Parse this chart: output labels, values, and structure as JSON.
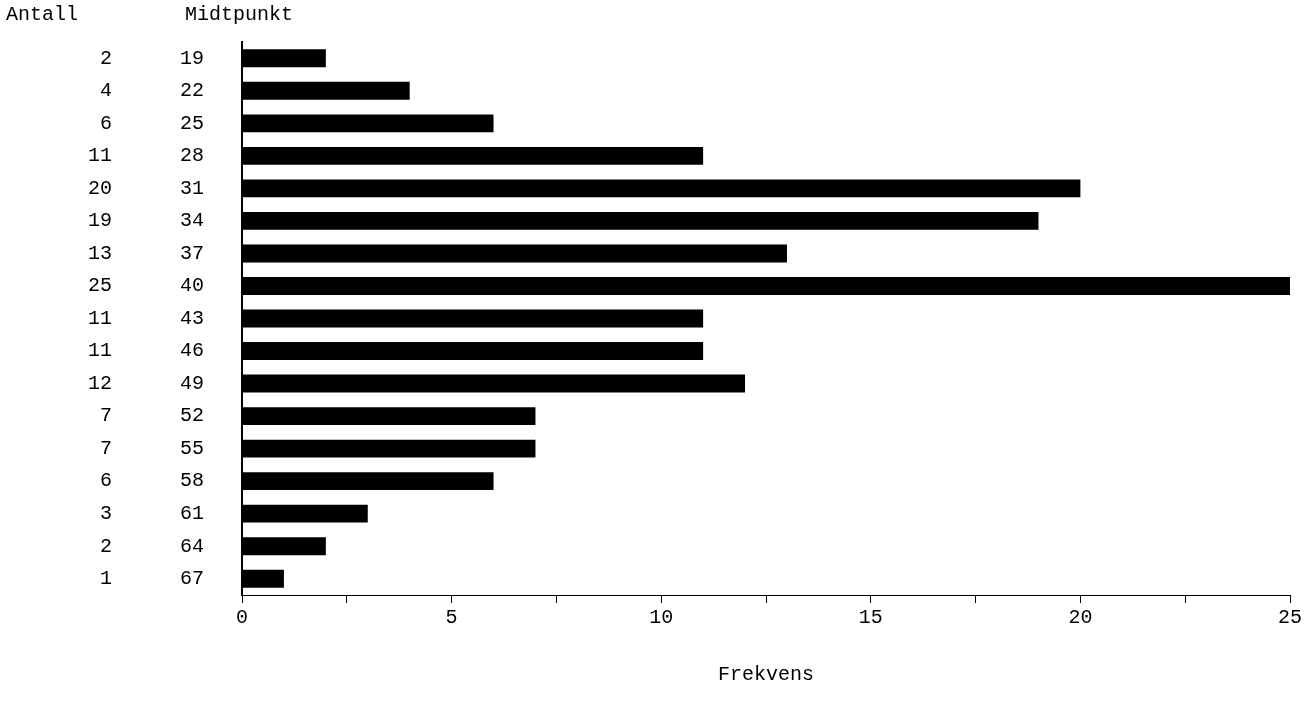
{
  "chart_data": {
    "type": "bar",
    "orientation": "horizontal",
    "xlabel": "Frekvens",
    "ylabel": "Midtpunkt",
    "annotations": [
      "Antall"
    ],
    "categories": [
      "19",
      "22",
      "25",
      "28",
      "31",
      "34",
      "37",
      "40",
      "43",
      "46",
      "49",
      "52",
      "55",
      "58",
      "61",
      "64",
      "67"
    ],
    "values": [
      2,
      4,
      6,
      11,
      20,
      19,
      13,
      25,
      11,
      11,
      12,
      7,
      7,
      6,
      3,
      2,
      1
    ],
    "color": "#000000",
    "data_labels": true,
    "grid": false,
    "legend": false,
    "xlim": [
      0,
      25
    ],
    "xticks": [
      0,
      {
        "value": 2.5,
        "label": null
      },
      5,
      {
        "value": 7.5,
        "label": null
      },
      10,
      {
        "value": 12.5,
        "label": null
      },
      15,
      {
        "value": 17.5,
        "label": null
      },
      20,
      {
        "value": 22.5,
        "label": null
      },
      25
    ]
  }
}
